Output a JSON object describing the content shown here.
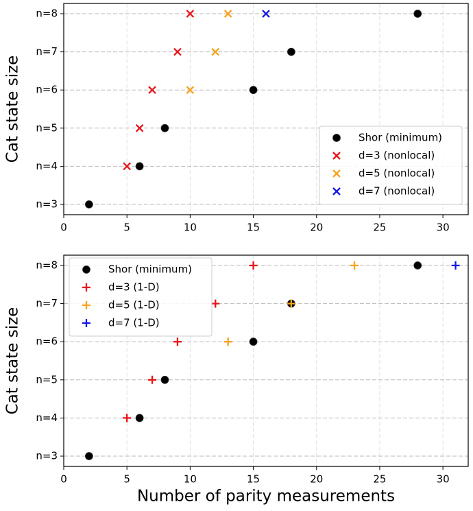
{
  "chart_data": [
    {
      "type": "scatter",
      "ylabel": "Cat state size",
      "categories": [
        "n=3",
        "n=4",
        "n=5",
        "n=6",
        "n=7",
        "n=8"
      ],
      "xlim": [
        0,
        32
      ],
      "xticks": [
        0,
        5,
        10,
        15,
        20,
        25,
        30
      ],
      "grid": true,
      "legend": "lower right",
      "series": [
        {
          "name": "Shor (minimum)",
          "color": "#000000",
          "marker": "o",
          "values": [
            2,
            6,
            8,
            15,
            18,
            28
          ]
        },
        {
          "name": "d=3 (nonlocal)",
          "color": "#e8161b",
          "marker": "x",
          "values": [
            null,
            5,
            6,
            7,
            9,
            10
          ]
        },
        {
          "name": "d=5 (nonlocal)",
          "color": "#f7a21b",
          "marker": "x",
          "values": [
            null,
            null,
            null,
            10,
            12,
            13
          ]
        },
        {
          "name": "d=7 (nonlocal)",
          "color": "#1616e8",
          "marker": "x",
          "values": [
            null,
            null,
            null,
            null,
            null,
            16
          ]
        }
      ]
    },
    {
      "type": "scatter",
      "ylabel": "Cat state size",
      "xlabel": "Number of parity measurements",
      "categories": [
        "n=3",
        "n=4",
        "n=5",
        "n=6",
        "n=7",
        "n=8"
      ],
      "xlim": [
        0,
        32
      ],
      "xticks": [
        0,
        5,
        10,
        15,
        20,
        25,
        30
      ],
      "grid": true,
      "legend": "upper left",
      "series": [
        {
          "name": "Shor (minimum)",
          "color": "#000000",
          "marker": "o",
          "values": [
            2,
            6,
            8,
            15,
            18,
            28
          ]
        },
        {
          "name": "d=3 (1-D)",
          "color": "#e8161b",
          "marker": "+",
          "values": [
            null,
            5,
            7,
            9,
            12,
            15
          ]
        },
        {
          "name": "d=5 (1-D)",
          "color": "#f7a21b",
          "marker": "+",
          "values": [
            null,
            null,
            null,
            13,
            18,
            23
          ]
        },
        {
          "name": "d=7 (1-D)",
          "color": "#1616e8",
          "marker": "+",
          "values": [
            null,
            null,
            null,
            null,
            null,
            31
          ]
        }
      ]
    }
  ]
}
